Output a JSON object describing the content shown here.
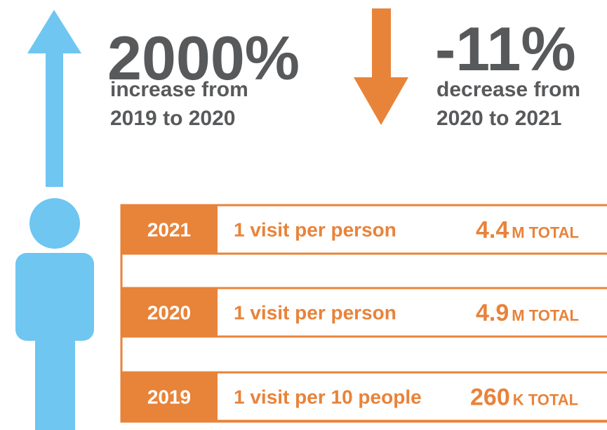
{
  "stats": [
    {
      "value": "2000%",
      "lines": [
        "increase from",
        "2019 to 2020"
      ]
    },
    {
      "value": "-11%",
      "lines": [
        "decrease from",
        "2020 to 2021"
      ]
    }
  ],
  "rows": [
    {
      "year": "2021",
      "rate": "1 visit per person",
      "total": "4.4",
      "unit": "M TOTAL"
    },
    {
      "year": "2020",
      "rate": "1 visit per person",
      "total": "4.9",
      "unit": "M TOTAL"
    },
    {
      "year": "2019",
      "rate": "1 visit per 10 people",
      "total": "260",
      "unit": "K TOTAL"
    }
  ]
}
